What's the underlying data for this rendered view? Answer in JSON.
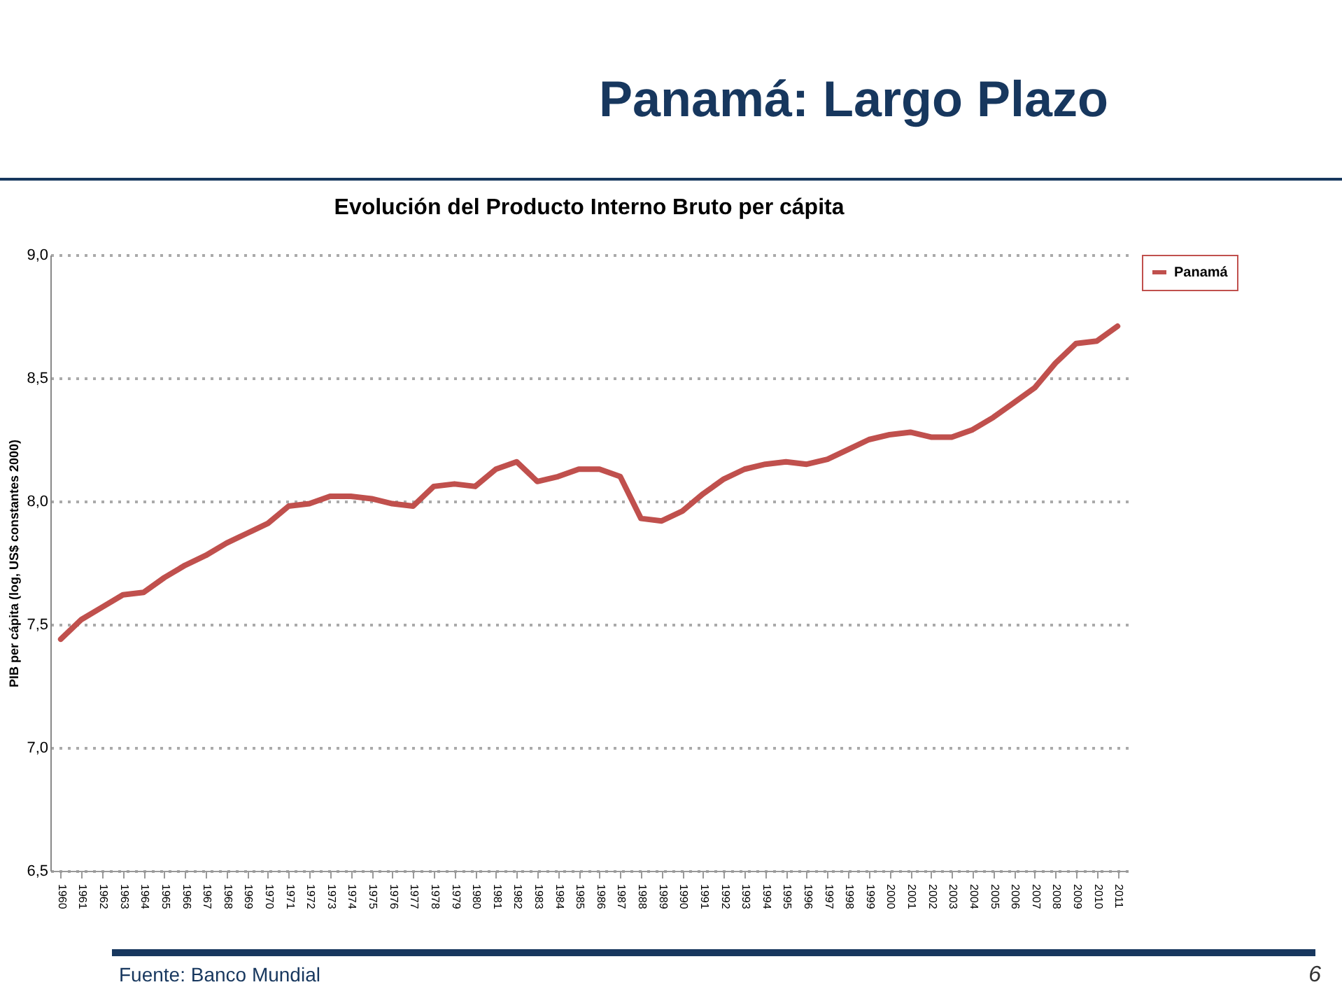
{
  "chart_data": {
    "type": "line",
    "title": "Panamá: Largo Plazo",
    "subtitle": "Evolución del Producto Interno Bruto per cápita",
    "ylabel": "PIB per cápita (log, US$ constantes 2000)",
    "categories": [
      "1960",
      "1961",
      "1962",
      "1963",
      "1964",
      "1965",
      "1966",
      "1967",
      "1968",
      "1969",
      "1970",
      "1971",
      "1972",
      "1973",
      "1974",
      "1975",
      "1976",
      "1977",
      "1978",
      "1979",
      "1980",
      "1981",
      "1982",
      "1983",
      "1984",
      "1985",
      "1986",
      "1987",
      "1988",
      "1989",
      "1990",
      "1991",
      "1992",
      "1993",
      "1994",
      "1995",
      "1996",
      "1997",
      "1998",
      "1999",
      "2000",
      "2001",
      "2002",
      "2003",
      "2004",
      "2005",
      "2006",
      "2007",
      "2008",
      "2009",
      "2010",
      "2011"
    ],
    "series": [
      {
        "name": "Panamá",
        "color": "#c0504d",
        "values": [
          7.44,
          7.52,
          7.57,
          7.62,
          7.63,
          7.69,
          7.74,
          7.78,
          7.83,
          7.87,
          7.91,
          7.98,
          7.99,
          8.02,
          8.02,
          8.01,
          7.99,
          7.98,
          8.06,
          8.07,
          8.06,
          8.13,
          8.16,
          8.08,
          8.1,
          8.13,
          8.13,
          8.1,
          7.93,
          7.92,
          7.96,
          8.03,
          8.09,
          8.13,
          8.15,
          8.16,
          8.15,
          8.17,
          8.21,
          8.25,
          8.27,
          8.28,
          8.26,
          8.26,
          8.29,
          8.34,
          8.4,
          8.46,
          8.56,
          8.64,
          8.65,
          8.71
        ]
      }
    ],
    "ylim": [
      6.5,
      9.0
    ],
    "yticks": [
      {
        "value": 6.5,
        "label": "6,5"
      },
      {
        "value": 7.0,
        "label": "7,0"
      },
      {
        "value": 7.5,
        "label": "7,5"
      },
      {
        "value": 8.0,
        "label": "8,0"
      },
      {
        "value": 8.5,
        "label": "8,5"
      },
      {
        "value": 9.0,
        "label": "9,0"
      }
    ],
    "grid": "y",
    "legend": "right",
    "marker": "none",
    "line_style": "solid",
    "annotations": [
      "Fuente: Banco Mundial",
      "6"
    ]
  }
}
